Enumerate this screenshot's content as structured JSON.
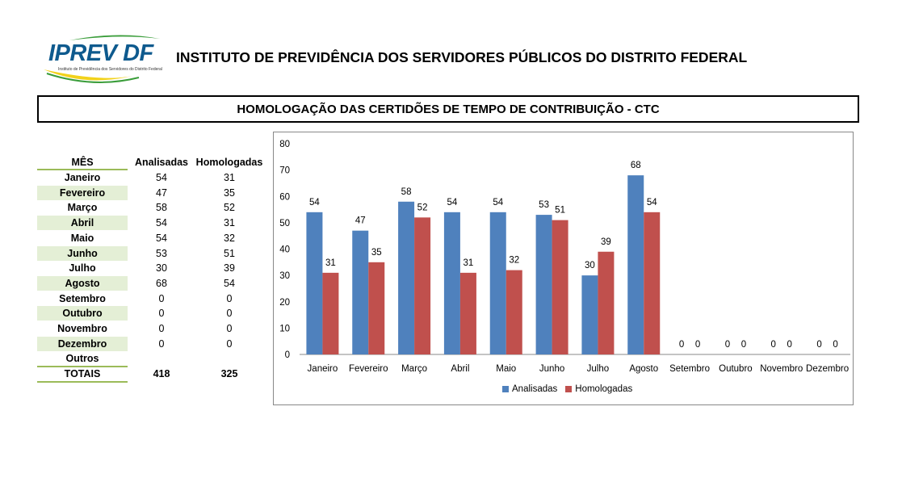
{
  "header": {
    "logo_text": "IPREV DF",
    "logo_subtitle": "Instituto de Previdência dos Servidores do Distrito Federal",
    "institute_title": "INSTITUTO DE PREVIDÊNCIA DOS SERVIDORES PÚBLICOS DO DISTRITO FEDERAL",
    "report_title": "HOMOLOGAÇÃO DAS CERTIDÕES DE TEMPO DE CONTRIBUIÇÃO - CTC"
  },
  "table": {
    "headers": {
      "month": "MÊS",
      "analisadas": "Analisadas",
      "homologadas": "Homologadas"
    },
    "rows": [
      {
        "month": "Janeiro",
        "analisadas": "54",
        "homologadas": "31"
      },
      {
        "month": "Fevereiro",
        "analisadas": "47",
        "homologadas": "35"
      },
      {
        "month": "Março",
        "analisadas": "58",
        "homologadas": "52"
      },
      {
        "month": "Abril",
        "analisadas": "54",
        "homologadas": "31"
      },
      {
        "month": "Maio",
        "analisadas": "54",
        "homologadas": "32"
      },
      {
        "month": "Junho",
        "analisadas": "53",
        "homologadas": "51"
      },
      {
        "month": "Julho",
        "analisadas": "30",
        "homologadas": "39"
      },
      {
        "month": "Agosto",
        "analisadas": "68",
        "homologadas": "54"
      },
      {
        "month": "Setembro",
        "analisadas": "0",
        "homologadas": "0"
      },
      {
        "month": "Outubro",
        "analisadas": "0",
        "homologadas": "0"
      },
      {
        "month": "Novembro",
        "analisadas": "0",
        "homologadas": "0"
      },
      {
        "month": "Dezembro",
        "analisadas": "0",
        "homologadas": "0"
      },
      {
        "month": "Outros",
        "analisadas": "",
        "homologadas": ""
      }
    ],
    "totals": {
      "label": "TOTAIS",
      "analisadas": "418",
      "homologadas": "325"
    }
  },
  "colors": {
    "analisadas": "#4f81bd",
    "homologadas": "#c0504d",
    "table_shade": "#e4efd6",
    "table_line": "#9bbb59",
    "logo_blue": "#0e5a8e",
    "logo_green": "#3a9d3a",
    "logo_yellow": "#f2d21b"
  },
  "chart_data": {
    "type": "bar",
    "categories": [
      "Janeiro",
      "Fevereiro",
      "Março",
      "Abril",
      "Maio",
      "Junho",
      "Julho",
      "Agosto",
      "Setembro",
      "Outubro",
      "Novembro",
      "Dezembro"
    ],
    "series": [
      {
        "name": "Analisadas",
        "values": [
          54,
          47,
          58,
          54,
          54,
          53,
          30,
          68,
          0,
          0,
          0,
          0
        ]
      },
      {
        "name": "Homologadas",
        "values": [
          31,
          35,
          52,
          31,
          32,
          51,
          39,
          54,
          0,
          0,
          0,
          0
        ]
      }
    ],
    "ylim": [
      0,
      80
    ],
    "yticks": [
      0,
      10,
      20,
      30,
      40,
      50,
      60,
      70,
      80
    ],
    "data_labels": true,
    "grid": false,
    "legend_position": "bottom"
  }
}
